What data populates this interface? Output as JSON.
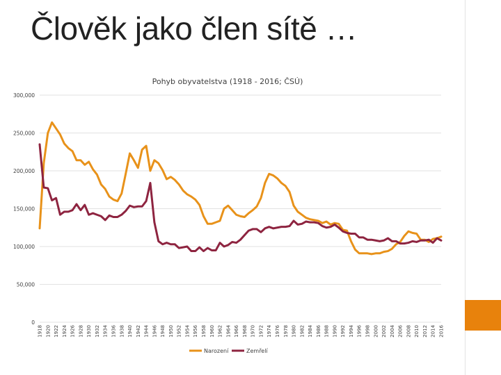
{
  "slide": {
    "title": "Člověk jako člen sítě …"
  },
  "colors": {
    "accent": "#e8820c",
    "narozeni": "#e8921a",
    "zemreli": "#8e2440",
    "grid": "#d9d9d9"
  },
  "chart_data": {
    "type": "line",
    "title": "Pohyb obyvatelstva (1918 - 2016; ČSÚ)",
    "xlabel": "",
    "ylabel": "",
    "ylim": [
      0,
      300000
    ],
    "yticks": [
      0,
      50000,
      100000,
      150000,
      200000,
      250000,
      300000
    ],
    "ytick_labels": [
      "0",
      "50,000",
      "100,000",
      "150,000",
      "200,000",
      "250,000",
      "300,000"
    ],
    "grid": true,
    "legend_position": "bottom",
    "x": [
      1918,
      1919,
      1920,
      1921,
      1922,
      1923,
      1924,
      1925,
      1926,
      1927,
      1928,
      1929,
      1930,
      1931,
      1932,
      1933,
      1934,
      1935,
      1936,
      1937,
      1938,
      1939,
      1940,
      1941,
      1942,
      1943,
      1944,
      1945,
      1946,
      1947,
      1948,
      1949,
      1950,
      1951,
      1952,
      1953,
      1954,
      1955,
      1956,
      1957,
      1958,
      1959,
      1960,
      1961,
      1962,
      1963,
      1964,
      1965,
      1966,
      1967,
      1968,
      1969,
      1970,
      1971,
      1972,
      1973,
      1974,
      1975,
      1976,
      1977,
      1978,
      1979,
      1980,
      1981,
      1982,
      1983,
      1984,
      1985,
      1986,
      1987,
      1988,
      1989,
      1990,
      1991,
      1992,
      1993,
      1994,
      1995,
      1996,
      1997,
      1998,
      1999,
      2000,
      2001,
      2002,
      2003,
      2004,
      2005,
      2006,
      2007,
      2008,
      2009,
      2010,
      2011,
      2012,
      2013,
      2014,
      2015,
      2016
    ],
    "x_tick_labels": [
      "1918",
      "1920",
      "1922",
      "1924",
      "1926",
      "1928",
      "1930",
      "1932",
      "1934",
      "1936",
      "1938",
      "1940",
      "1942",
      "1944",
      "1946",
      "1948",
      "1950",
      "1952",
      "1954",
      "1956",
      "1958",
      "1960",
      "1962",
      "1964",
      "1966",
      "1968",
      "1970",
      "1972",
      "1974",
      "1976",
      "1978",
      "1980",
      "1982",
      "1984",
      "1986",
      "1988",
      "1990",
      "1992",
      "1994",
      "1996",
      "1998",
      "2000",
      "2002",
      "2004",
      "2006",
      "2008",
      "2010",
      "2012",
      "2014",
      "2016"
    ],
    "series": [
      {
        "name": "Narození",
        "color": "#e8921a",
        "values": [
          124000,
          210000,
          250000,
          264000,
          256000,
          248000,
          236000,
          230000,
          226000,
          214000,
          214000,
          208000,
          212000,
          202000,
          195000,
          182000,
          176000,
          166000,
          162000,
          160000,
          170000,
          196000,
          223000,
          214000,
          204000,
          228000,
          233000,
          200000,
          214000,
          210000,
          201000,
          189000,
          192000,
          188000,
          182000,
          174000,
          169000,
          166000,
          162000,
          155000,
          140000,
          130000,
          130000,
          132000,
          134000,
          150000,
          154000,
          148000,
          142000,
          140000,
          139000,
          144000,
          148000,
          153000,
          164000,
          184000,
          196000,
          194000,
          190000,
          184000,
          180000,
          172000,
          154000,
          146000,
          142000,
          138000,
          136000,
          135000,
          134000,
          131000,
          133000,
          129000,
          131000,
          130000,
          122000,
          121000,
          107000,
          96000,
          91000,
          91000,
          91000,
          90000,
          91000,
          91000,
          93000,
          94000,
          97000,
          103000,
          106000,
          114000,
          120000,
          118000,
          117000,
          109000,
          109000,
          106000,
          110000,
          111000,
          113000
        ]
      },
      {
        "name": "Zemřelí",
        "color": "#8e2440",
        "values": [
          235000,
          178000,
          177000,
          161000,
          164000,
          142000,
          146000,
          146000,
          148000,
          156000,
          148000,
          155000,
          142000,
          144000,
          142000,
          140000,
          135000,
          141000,
          139000,
          139000,
          142000,
          147000,
          154000,
          152000,
          153000,
          153000,
          160000,
          184000,
          132000,
          107000,
          103000,
          105000,
          103000,
          103000,
          98000,
          99000,
          100000,
          94000,
          94000,
          99000,
          94000,
          98000,
          95000,
          95000,
          105000,
          100000,
          102000,
          106000,
          105000,
          109000,
          115000,
          121000,
          123000,
          123000,
          119000,
          124000,
          126000,
          124000,
          125000,
          126000,
          126000,
          127000,
          134000,
          129000,
          130000,
          133000,
          132000,
          132000,
          131000,
          127000,
          125000,
          126000,
          129000,
          125000,
          120000,
          118000,
          117000,
          117000,
          112000,
          112000,
          109000,
          109000,
          108000,
          107000,
          108000,
          111000,
          107000,
          107000,
          104000,
          104000,
          105000,
          107000,
          106000,
          108000,
          108000,
          109000,
          105000,
          111000,
          108000
        ]
      }
    ]
  }
}
